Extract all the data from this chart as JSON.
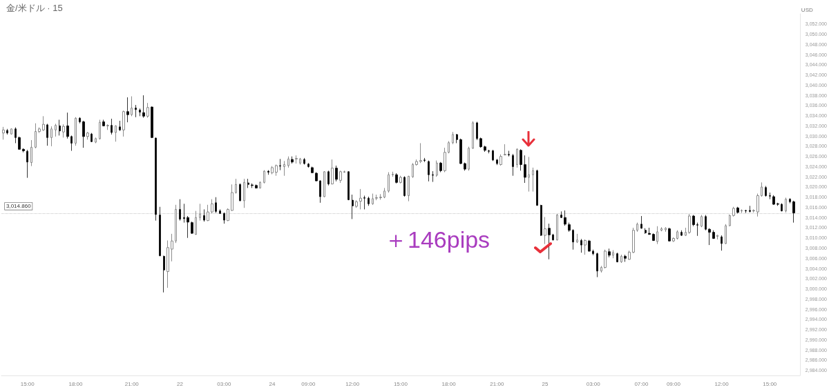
{
  "chart_data": {
    "type": "candlestick",
    "title": "金/米ドル · 15",
    "ylabel": "USD",
    "categories": [
      null,
      null,
      null,
      null,
      null,
      null,
      "15:00",
      null,
      null,
      null,
      null,
      null,
      null,
      null,
      null,
      null,
      null,
      null,
      "18:00",
      null,
      null,
      null,
      null,
      null,
      null,
      null,
      null,
      null,
      null,
      null,
      null,
      null,
      "21:00",
      null,
      null,
      null,
      null,
      null,
      null,
      null,
      null,
      null,
      null,
      null,
      "22",
      null,
      null,
      null,
      null,
      null,
      null,
      null,
      null,
      null,
      null,
      "03:00",
      null,
      null,
      null,
      null,
      null,
      null,
      null,
      null,
      null,
      null,
      null,
      "24",
      null,
      null,
      null,
      null,
      null,
      null,
      null,
      null,
      "09:00",
      null,
      null,
      null,
      null,
      null,
      null,
      null,
      null,
      null,
      null,
      "12:00",
      null,
      null,
      null,
      null,
      null,
      null,
      null,
      null,
      null,
      null,
      null,
      "15:00",
      null,
      null,
      null,
      null,
      null,
      null,
      null,
      null,
      null,
      null,
      null,
      "18:00",
      null,
      null,
      null,
      null,
      null,
      null,
      null,
      null,
      null,
      null,
      null,
      "21:00",
      null,
      null,
      null,
      null,
      null,
      null,
      null,
      null,
      null,
      null,
      null,
      "25",
      null,
      null,
      null,
      null,
      null,
      null,
      null,
      null,
      null,
      null,
      null,
      "03:00",
      null,
      null,
      null,
      null,
      null,
      null,
      null,
      null,
      null,
      null,
      null,
      "07:00",
      null,
      null,
      null,
      null,
      null,
      null,
      null,
      "09:00",
      null,
      null,
      null,
      null,
      null,
      null,
      null,
      null,
      null,
      null,
      null,
      "12:00",
      null,
      null,
      null,
      null,
      null,
      null,
      null,
      null,
      null,
      null,
      null,
      "15:00",
      null,
      null,
      null,
      null,
      null,
      null
    ],
    "ohlc": [
      [
        3030.6,
        3031.8,
        3029.3,
        3031.2
      ],
      [
        3031.1,
        3031.4,
        3030.3,
        3030.6
      ],
      [
        3030.4,
        3031.5,
        3030.3,
        3031.4
      ],
      [
        3031.4,
        3031.7,
        3028.6,
        3029.7
      ],
      [
        3029.7,
        3029.9,
        3027.3,
        3027.4
      ],
      [
        3027.4,
        3027.6,
        3026.8,
        3027.1
      ],
      [
        3027.0,
        3027.3,
        3021.8,
        3024.9
      ],
      [
        3024.8,
        3029.2,
        3024.1,
        3027.8
      ],
      [
        3027.8,
        3032.5,
        3027.6,
        3030.9
      ],
      [
        3030.9,
        3031.7,
        3030.6,
        3031.4
      ],
      [
        3031.2,
        3033.9,
        3031.0,
        3032.3
      ],
      [
        3032.2,
        3032.4,
        3028.1,
        3029.7
      ],
      [
        3029.7,
        3031.9,
        3028.0,
        3031.4
      ],
      [
        3031.2,
        3032.4,
        3029.9,
        3032.1
      ],
      [
        3032.0,
        3033.2,
        3030.1,
        3031.0
      ],
      [
        3030.8,
        3032.3,
        3029.7,
        3031.9
      ],
      [
        3032.0,
        3034.6,
        3029.5,
        3029.9
      ],
      [
        3029.9,
        3030.1,
        3027.1,
        3028.6
      ],
      [
        3028.6,
        3033.7,
        3028.1,
        3033.5
      ],
      [
        3033.5,
        3033.7,
        3032.5,
        3032.8
      ],
      [
        3032.8,
        3033.0,
        3027.7,
        3029.9
      ],
      [
        3029.9,
        3030.8,
        3029.3,
        3030.6
      ],
      [
        3030.4,
        3030.6,
        3028.8,
        3028.9
      ],
      [
        3028.8,
        3029.7,
        3028.6,
        3029.5
      ],
      [
        3029.5,
        3033.2,
        3029.3,
        3032.7
      ],
      [
        3032.8,
        3033.2,
        3031.9,
        3032.0
      ],
      [
        3032.0,
        3032.3,
        3031.2,
        3032.1
      ],
      [
        3032.1,
        3033.4,
        3030.3,
        3030.7
      ],
      [
        3030.7,
        3032.1,
        3028.9,
        3032.0
      ],
      [
        3031.8,
        3033.0,
        3031.0,
        3031.2
      ],
      [
        3031.2,
        3035.0,
        3029.9,
        3034.8
      ],
      [
        3034.8,
        3037.6,
        3032.7,
        3034.2
      ],
      [
        3034.2,
        3037.8,
        3033.9,
        3035.5
      ],
      [
        3035.5,
        3036.1,
        3033.7,
        3035.2
      ],
      [
        3035.1,
        3035.4,
        3033.9,
        3034.7
      ],
      [
        3034.6,
        3038.0,
        3033.6,
        3033.9
      ],
      [
        3033.9,
        3036.5,
        3033.6,
        3035.6
      ],
      [
        3035.7,
        3035.8,
        3029.6,
        3029.7
      ],
      [
        3029.6,
        3029.7,
        3013.4,
        3014.6
      ],
      [
        3014.5,
        3016.1,
        3006.4,
        3006.5
      ],
      [
        3006.4,
        3006.5,
        2999.3,
        3003.7
      ],
      [
        3003.4,
        3009.5,
        3000.2,
        3008.1
      ],
      [
        3007.8,
        3010.8,
        3005.4,
        3009.4
      ],
      [
        3009.4,
        3016.5,
        3009.0,
        3015.6
      ],
      [
        3015.6,
        3017.6,
        3013.4,
        3013.7
      ],
      [
        3014.0,
        3016.7,
        3013.0,
        3013.8
      ],
      [
        3014.0,
        3014.3,
        3010.0,
        3013.1
      ],
      [
        3013.0,
        3013.2,
        3010.8,
        3010.9
      ],
      [
        3010.7,
        3015.3,
        3010.6,
        3014.0
      ],
      [
        3014.0,
        3016.7,
        3013.4,
        3014.7
      ],
      [
        3014.4,
        3015.6,
        3013.2,
        3013.5
      ],
      [
        3013.4,
        3016.5,
        3013.3,
        3015.1
      ],
      [
        3015.1,
        3017.6,
        3014.8,
        3016.7
      ],
      [
        3016.9,
        3018.0,
        3014.9,
        3015.2
      ],
      [
        3015.3,
        3015.6,
        3014.7,
        3014.8
      ],
      [
        3014.8,
        3015.0,
        3012.8,
        3013.5
      ],
      [
        3013.4,
        3015.8,
        3013.3,
        3015.6
      ],
      [
        3015.4,
        3020.5,
        3015.3,
        3018.9
      ],
      [
        3018.9,
        3021.6,
        3018.7,
        3020.5
      ],
      [
        3020.5,
        3020.7,
        3017.2,
        3017.3
      ],
      [
        3017.3,
        3021.6,
        3015.9,
        3020.9
      ],
      [
        3020.8,
        3021.6,
        3019.8,
        3020.5
      ],
      [
        3020.4,
        3020.7,
        3019.8,
        3020.3
      ],
      [
        3020.3,
        3020.5,
        3019.7,
        3019.8
      ],
      [
        3019.8,
        3021.1,
        3019.7,
        3020.9
      ],
      [
        3020.9,
        3023.3,
        3020.7,
        3023.1
      ],
      [
        3023.1,
        3023.3,
        3022.4,
        3022.9
      ],
      [
        3022.8,
        3024.1,
        3022.5,
        3023.8
      ],
      [
        3022.9,
        3024.4,
        3022.2,
        3024.2
      ],
      [
        3024.2,
        3025.5,
        3023.3,
        3024.1
      ],
      [
        3024.0,
        3025.1,
        3022.2,
        3024.4
      ],
      [
        3024.2,
        3026.0,
        3023.8,
        3025.5
      ],
      [
        3025.4,
        3026.0,
        3024.6,
        3024.9
      ],
      [
        3025.5,
        3026.2,
        3024.6,
        3025.6
      ],
      [
        3024.7,
        3025.7,
        3024.4,
        3025.5
      ],
      [
        3025.4,
        3025.7,
        3024.4,
        3024.6
      ],
      [
        3024.5,
        3024.7,
        3023.8,
        3024.0
      ],
      [
        3023.8,
        3024.0,
        3022.7,
        3022.8
      ],
      [
        3022.7,
        3022.9,
        3021.1,
        3021.2
      ],
      [
        3021.2,
        3021.3,
        3016.9,
        3018.1
      ],
      [
        3018.1,
        3023.1,
        3018.0,
        3023.0
      ],
      [
        3023.0,
        3023.2,
        3020.3,
        3020.6
      ],
      [
        3020.6,
        3025.4,
        3020.5,
        3023.7
      ],
      [
        3023.7,
        3024.2,
        3021.1,
        3021.5
      ],
      [
        3021.3,
        3023.2,
        3020.8,
        3023.0
      ],
      [
        3022.9,
        3023.2,
        3022.8,
        3023.0
      ],
      [
        3023.0,
        3023.1,
        3017.4,
        3017.5
      ],
      [
        3017.4,
        3018.5,
        3013.7,
        3016.3
      ],
      [
        3016.2,
        3017.4,
        3015.9,
        3017.1
      ],
      [
        3017.2,
        3019.6,
        3015.6,
        3017.8
      ],
      [
        3017.9,
        3018.3,
        3015.6,
        3017.8
      ],
      [
        3017.8,
        3018.1,
        3016.3,
        3016.7
      ],
      [
        3016.7,
        3018.7,
        3016.5,
        3017.7
      ],
      [
        3017.8,
        3018.5,
        3017.4,
        3017.9
      ],
      [
        3017.9,
        3018.6,
        3017.5,
        3018.0
      ],
      [
        3018.0,
        3019.8,
        3017.8,
        3019.2
      ],
      [
        3019.2,
        3022.9,
        3018.9,
        3022.4
      ],
      [
        3022.4,
        3023.0,
        3022.0,
        3022.5
      ],
      [
        3022.4,
        3022.7,
        3020.7,
        3020.9
      ],
      [
        3020.9,
        3022.2,
        3020.7,
        3021.9
      ],
      [
        3021.9,
        3022.1,
        3018.1,
        3018.3
      ],
      [
        3018.3,
        3022.2,
        3017.2,
        3022.1
      ],
      [
        3022.0,
        3024.7,
        3021.8,
        3024.4
      ],
      [
        3024.4,
        3025.4,
        3024.2,
        3025.0
      ],
      [
        3025.0,
        3028.6,
        3024.7,
        3025.2
      ],
      [
        3025.3,
        3025.7,
        3024.9,
        3025.2
      ],
      [
        3025.0,
        3025.2,
        3021.1,
        3022.4
      ],
      [
        3022.4,
        3023.1,
        3021.0,
        3022.3
      ],
      [
        3022.3,
        3025.2,
        3022.0,
        3024.7
      ],
      [
        3024.7,
        3024.9,
        3022.9,
        3023.2
      ],
      [
        3023.2,
        3027.7,
        3022.9,
        3026.8
      ],
      [
        3026.8,
        3029.0,
        3026.6,
        3028.7
      ],
      [
        3028.7,
        3030.8,
        3028.4,
        3030.3
      ],
      [
        3030.3,
        3030.4,
        3028.6,
        3029.3
      ],
      [
        3029.3,
        3029.5,
        3024.5,
        3024.6
      ],
      [
        3024.6,
        3024.8,
        3023.2,
        3023.5
      ],
      [
        3023.5,
        3027.9,
        3023.2,
        3027.6
      ],
      [
        3027.6,
        3032.9,
        3027.5,
        3032.6
      ],
      [
        3032.6,
        3032.8,
        3029.2,
        3029.5
      ],
      [
        3029.5,
        3029.7,
        3027.7,
        3027.9
      ],
      [
        3027.9,
        3028.1,
        3026.9,
        3027.2
      ],
      [
        3027.1,
        3027.3,
        3026.6,
        3027.0
      ],
      [
        3027.1,
        3027.3,
        3025.1,
        3025.3
      ],
      [
        3025.3,
        3025.5,
        3024.3,
        3024.6
      ],
      [
        3024.4,
        3026.4,
        3024.2,
        3026.0
      ],
      [
        3026.3,
        3028.4,
        3026.2,
        3026.4
      ],
      [
        3026.4,
        3027.1,
        3026.0,
        3026.3
      ],
      [
        3026.2,
        3026.5,
        3022.2,
        3024.0
      ],
      [
        3024.4,
        3027.6,
        3023.8,
        3027.4
      ],
      [
        3027.2,
        3027.4,
        3023.2,
        3024.4
      ],
      [
        3024.4,
        3026.2,
        3020.8,
        3021.9
      ],
      [
        3021.9,
        3025.9,
        3019.1,
        3022.4
      ],
      [
        3022.4,
        3023.8,
        3019.1,
        3023.2
      ],
      [
        3023.2,
        3023.4,
        3016.3,
        3016.4
      ],
      [
        3016.4,
        3016.5,
        3010.4,
        3010.5
      ],
      [
        3010.5,
        3014.1,
        3008.8,
        3011.8
      ],
      [
        3011.9,
        3012.8,
        3005.8,
        3010.6
      ],
      [
        3010.6,
        3010.8,
        3009.5,
        3009.6
      ],
      [
        3009.6,
        3014.7,
        3009.5,
        3014.5
      ],
      [
        3014.5,
        3015.2,
        3013.9,
        3014.0
      ],
      [
        3014.0,
        3015.4,
        3012.4,
        3012.7
      ],
      [
        3012.6,
        3013.0,
        3011.2,
        3011.5
      ],
      [
        3011.5,
        3011.7,
        3007.7,
        3009.2
      ],
      [
        3009.2,
        3010.8,
        3009.0,
        3009.6
      ],
      [
        3009.5,
        3009.8,
        3007.1,
        3008.6
      ],
      [
        3008.6,
        3009.7,
        3006.7,
        3009.5
      ],
      [
        3009.4,
        3009.6,
        3007.3,
        3007.4
      ],
      [
        3007.4,
        3007.7,
        3006.6,
        3006.9
      ],
      [
        3006.9,
        3007.1,
        3002.3,
        3003.5
      ],
      [
        3003.5,
        3004.5,
        3003.2,
        3004.2
      ],
      [
        3004.2,
        3007.7,
        3004.0,
        3007.4
      ],
      [
        3007.3,
        3007.9,
        3006.2,
        3006.6
      ],
      [
        3006.6,
        3007.6,
        3006.0,
        3007.1
      ],
      [
        3006.9,
        3007.1,
        3005.2,
        3005.3
      ],
      [
        3005.3,
        3006.7,
        3005.1,
        3006.4
      ],
      [
        3006.4,
        3006.7,
        3005.3,
        3006.0
      ],
      [
        3005.8,
        3007.5,
        3005.7,
        3007.2
      ],
      [
        3007.2,
        3012.0,
        3007.0,
        3011.5
      ],
      [
        3011.5,
        3013.0,
        3011.2,
        3012.7
      ],
      [
        3012.7,
        3014.3,
        3011.8,
        3011.9
      ],
      [
        3011.5,
        3011.9,
        3010.8,
        3011.0
      ],
      [
        3010.9,
        3012.0,
        3010.6,
        3010.7
      ],
      [
        3010.7,
        3010.9,
        3009.4,
        3009.5
      ],
      [
        3009.3,
        3012.3,
        3008.8,
        3011.2
      ],
      [
        3011.5,
        3012.1,
        3011.3,
        3011.8
      ],
      [
        3011.6,
        3012.1,
        3011.2,
        3011.9
      ],
      [
        3011.8,
        3012.0,
        3009.3,
        3009.4
      ],
      [
        3009.4,
        3010.1,
        3009.2,
        3009.9
      ],
      [
        3009.9,
        3011.5,
        3009.7,
        3011.2
      ],
      [
        3011.1,
        3011.5,
        3010.4,
        3010.5
      ],
      [
        3010.5,
        3012.0,
        3010.4,
        3011.1
      ],
      [
        3011.1,
        3014.7,
        3010.8,
        3014.3
      ],
      [
        3014.3,
        3014.5,
        3012.3,
        3012.6
      ],
      [
        3012.6,
        3013.0,
        3010.4,
        3012.5
      ],
      [
        3012.3,
        3014.5,
        3012.1,
        3014.2
      ],
      [
        3014.2,
        3014.5,
        3011.5,
        3011.7
      ],
      [
        3011.7,
        3011.9,
        3008.6,
        3011.1
      ],
      [
        3011.1,
        3011.5,
        3009.8,
        3009.9
      ],
      [
        3010.3,
        3010.6,
        3009.7,
        3010.5
      ],
      [
        3010.2,
        3010.5,
        3007.5,
        3008.9
      ],
      [
        3008.9,
        3012.7,
        3008.8,
        3012.4
      ],
      [
        3012.4,
        3014.6,
        3012.3,
        3014.4
      ],
      [
        3014.4,
        3016.1,
        3014.2,
        3015.8
      ],
      [
        3015.9,
        3016.1,
        3014.8,
        3015.0
      ],
      [
        3015.3,
        3015.6,
        3014.9,
        3015.4
      ],
      [
        3015.4,
        3015.5,
        3014.9,
        3015.3
      ],
      [
        3015.4,
        3016.3,
        3015.0,
        3015.2
      ],
      [
        3015.3,
        3015.6,
        3015.0,
        3015.4
      ],
      [
        3015.1,
        3018.7,
        3014.2,
        3018.3
      ],
      [
        3018.3,
        3020.9,
        3018.1,
        3020.0
      ],
      [
        3019.9,
        3020.2,
        3018.1,
        3018.3
      ],
      [
        3018.3,
        3018.9,
        3017.6,
        3018.2
      ],
      [
        3018.1,
        3018.4,
        3016.5,
        3016.6
      ],
      [
        3016.7,
        3016.9,
        3016.3,
        3016.6
      ],
      [
        3016.6,
        3016.8,
        3015.2,
        3015.3
      ],
      [
        3015.3,
        3017.9,
        3015.0,
        3017.6
      ],
      [
        3017.6,
        3017.8,
        3016.8,
        3017.1
      ],
      [
        3017.1,
        3017.3,
        3013.0,
        3014.9
      ]
    ],
    "ylim": [
      2983,
      3054
    ],
    "yticks": [
      {
        "value": 2984,
        "label": "2,984.000"
      },
      {
        "value": 2986,
        "label": "2,986.000"
      },
      {
        "value": 2988,
        "label": "2,988.000"
      },
      {
        "value": 2990,
        "label": "2,990.000"
      },
      {
        "value": 2992,
        "label": "2,992.000"
      },
      {
        "value": 2994,
        "label": "2,994.000"
      },
      {
        "value": 2996,
        "label": "2,996.000"
      },
      {
        "value": 2998,
        "label": "2,998.000"
      },
      {
        "value": 3000,
        "label": "3,000.000"
      },
      {
        "value": 3002,
        "label": "3,002.000"
      },
      {
        "value": 3004,
        "label": "3,004.000"
      },
      {
        "value": 3006,
        "label": "3,006.000"
      },
      {
        "value": 3008,
        "label": "3,008.000"
      },
      {
        "value": 3010,
        "label": "3,010.000"
      },
      {
        "value": 3012,
        "label": "3,012.000"
      },
      {
        "value": 3014,
        "label": "3,014.000"
      },
      {
        "value": 3016,
        "label": "3,016.000"
      },
      {
        "value": 3018,
        "label": "3,018.000"
      },
      {
        "value": 3020,
        "label": "3,020.000"
      },
      {
        "value": 3022,
        "label": "3,022.000"
      },
      {
        "value": 3024,
        "label": "3,024.000"
      },
      {
        "value": 3026,
        "label": "3,026.000"
      },
      {
        "value": 3028,
        "label": "3,028.000"
      },
      {
        "value": 3030,
        "label": "3,030.000"
      },
      {
        "value": 3032,
        "label": "3,032.000"
      },
      {
        "value": 3034,
        "label": "3,034.000"
      },
      {
        "value": 3036,
        "label": "3,036.000"
      },
      {
        "value": 3038,
        "label": "3,038.000"
      },
      {
        "value": 3040,
        "label": "3,040.000"
      },
      {
        "value": 3042,
        "label": "3,042.000"
      },
      {
        "value": 3044,
        "label": "3,044.000"
      },
      {
        "value": 3046,
        "label": "3,046.000"
      },
      {
        "value": 3048,
        "label": "3,048.000"
      },
      {
        "value": 3050,
        "label": "3,050.000"
      },
      {
        "value": 3052,
        "label": "3,052.000"
      }
    ],
    "ref_lines": [
      {
        "axis": "y",
        "value": 3014.86,
        "label": "3,014.860",
        "line_style": "dotted",
        "color": "#9e9e9e"
      }
    ],
    "annotations": [
      "＋146pips"
    ],
    "grid": false
  }
}
